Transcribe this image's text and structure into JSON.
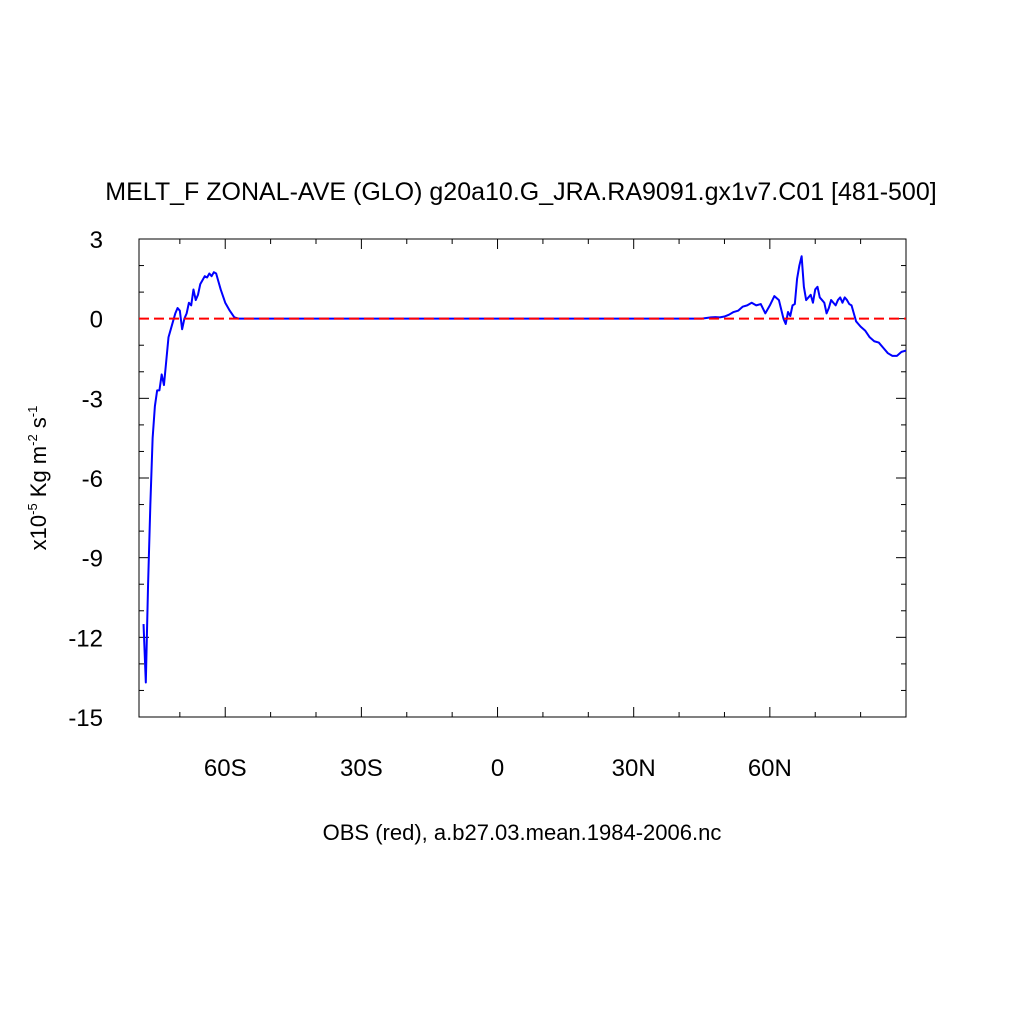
{
  "chart_data": {
    "type": "line",
    "title": "MELT_F ZONAL-AVE (GLO) g20a10.G_JRA.RA9091.gx1v7.C01 [481-500]",
    "ylabel": {
      "prefix": "x10",
      "prefix_exp": "-5",
      "unit": " Kg m",
      "unit_exp": "-2",
      "unit2": " s",
      "unit2_exp": "-1"
    },
    "xlabel": "OBS (red), a.b27.03.mean.1984-2006.nc",
    "xlim": [
      -79,
      90
    ],
    "ylim": [
      -15,
      3
    ],
    "yticks": [
      {
        "value": 3,
        "label": "3"
      },
      {
        "value": 0,
        "label": "0"
      },
      {
        "value": -3,
        "label": "-3"
      },
      {
        "value": -6,
        "label": "-6"
      },
      {
        "value": -9,
        "label": "-9"
      },
      {
        "value": -12,
        "label": "-12"
      },
      {
        "value": -15,
        "label": "-15"
      }
    ],
    "xticks": [
      {
        "value": -60,
        "label": "60S"
      },
      {
        "value": -30,
        "label": "30S"
      },
      {
        "value": 0,
        "label": "0"
      },
      {
        "value": 30,
        "label": "30N"
      },
      {
        "value": 60,
        "label": "60N"
      }
    ],
    "series": [
      {
        "color": "#0000ff",
        "style": "solid",
        "x": [
          -78,
          -77.5,
          -77,
          -76.5,
          -76,
          -75.5,
          -75,
          -74.5,
          -74,
          -73.5,
          -73,
          -72.5,
          -72,
          -71.5,
          -71,
          -70.5,
          -70,
          -69.5,
          -69,
          -68.5,
          -68,
          -67.5,
          -67,
          -66.5,
          -66,
          -65.5,
          -65,
          -64.5,
          -64,
          -63.5,
          -63,
          -62.5,
          -62,
          -61.5,
          -61,
          -60.5,
          -60,
          -59,
          -58,
          -57,
          -56,
          -50,
          -40,
          -30,
          -20,
          -10,
          0,
          10,
          20,
          30,
          40,
          45,
          47,
          48,
          49,
          50,
          51,
          52,
          53,
          54,
          55,
          56,
          57,
          58,
          59,
          60,
          61,
          62,
          63,
          63.5,
          64,
          64.5,
          65,
          65.5,
          66,
          66.5,
          67,
          67.5,
          68,
          68.5,
          69,
          69.5,
          70,
          70.5,
          71,
          71.5,
          72,
          72.5,
          73,
          73.5,
          74,
          74.5,
          75,
          75.5,
          76,
          76.5,
          77,
          77.5,
          78,
          78.5,
          79,
          79.5,
          80,
          81,
          82,
          83,
          84,
          85,
          86,
          87,
          88,
          89,
          90
        ],
        "y": [
          -11.5,
          -13.7,
          -10,
          -7,
          -4.5,
          -3.3,
          -2.7,
          -2.7,
          -2.1,
          -2.5,
          -1.6,
          -0.7,
          -0.4,
          -0.1,
          0.2,
          0.4,
          0.3,
          -0.4,
          0,
          0.2,
          0.6,
          0.5,
          1.1,
          0.7,
          0.9,
          1.3,
          1.45,
          1.6,
          1.55,
          1.7,
          1.6,
          1.75,
          1.7,
          1.4,
          1.1,
          0.85,
          0.6,
          0.3,
          0.05,
          0,
          0,
          0,
          0,
          0,
          0,
          0,
          0,
          0,
          0,
          0,
          0,
          0,
          0.05,
          0.06,
          0.05,
          0.08,
          0.15,
          0.25,
          0.3,
          0.45,
          0.5,
          0.6,
          0.5,
          0.55,
          0.2,
          0.5,
          0.85,
          0.7,
          0,
          -0.2,
          0.25,
          0.1,
          0.5,
          0.55,
          1.5,
          2.0,
          2.35,
          1.2,
          0.7,
          0.8,
          0.9,
          0.6,
          1.1,
          1.2,
          0.8,
          0.7,
          0.6,
          0.2,
          0.4,
          0.7,
          0.6,
          0.5,
          0.7,
          0.8,
          0.6,
          0.8,
          0.7,
          0.55,
          0.5,
          0.2,
          -0.1,
          -0.2,
          -0.3,
          -0.45,
          -0.7,
          -0.85,
          -0.9,
          -1.1,
          -1.3,
          -1.4,
          -1.4,
          -1.25,
          -1.2
        ]
      },
      {
        "color": "#ff0000",
        "style": "dashed",
        "x": [
          -79,
          90
        ],
        "y": [
          0,
          0
        ]
      }
    ]
  }
}
